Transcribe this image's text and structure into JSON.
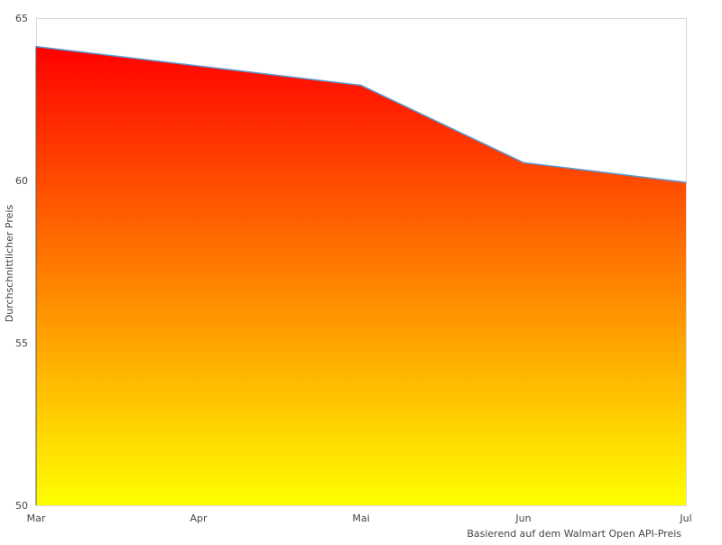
{
  "chart_data": {
    "type": "area",
    "title": "",
    "categories": [
      "Mar",
      "Apr",
      "Mai",
      "Jun",
      "Jul"
    ],
    "series": [
      {
        "points": [
          {
            "x": "Mar",
            "y": 64.12
          },
          {
            "x": "Mai",
            "y": 62.93
          },
          {
            "x": "Jun",
            "y": 60.55
          },
          {
            "x": "Jul",
            "y": 59.94
          }
        ]
      }
    ],
    "xlabel": "Basierend auf dem Walmart Open API-Preis",
    "ylabel": "Durchschnittlicher Preis",
    "ylim": [
      50,
      65
    ],
    "yticks": [
      "50",
      "55",
      "60",
      "65"
    ],
    "grid": false,
    "colors": {
      "line": "#5b9bd5",
      "fill_top": "#ff0000",
      "fill_bottom": "#ffff00",
      "frame": "#d9d9d9"
    }
  }
}
